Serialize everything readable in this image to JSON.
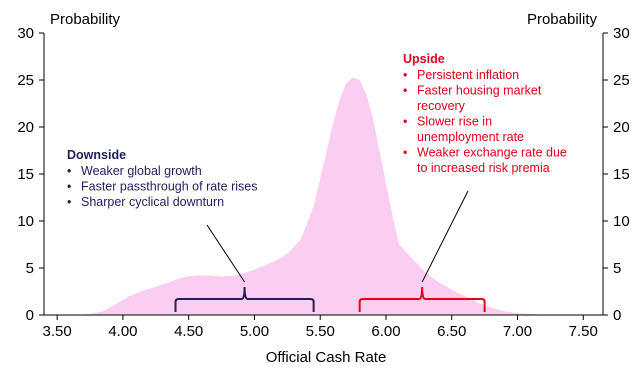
{
  "chart_data": {
    "type": "area",
    "xlabel": "Official Cash Rate",
    "ylabel_left": "Probability",
    "ylabel_right": "Probability",
    "xlim": [
      3.4,
      7.65
    ],
    "ylim": [
      0,
      30
    ],
    "x_ticks": [
      "3.50",
      "4.00",
      "4.50",
      "5.00",
      "5.50",
      "6.00",
      "6.50",
      "7.00",
      "7.50"
    ],
    "y_ticks": [
      "0",
      "5",
      "10",
      "15",
      "20",
      "25",
      "30"
    ],
    "grid": false,
    "colors": {
      "fill": "#fbcdf0",
      "downside": "#1f1f5c",
      "upside": "#e3001b",
      "axis": "#000000"
    },
    "series": [
      {
        "x": [
          3.6,
          3.75,
          3.85,
          3.95,
          4.05,
          4.15,
          4.25,
          4.35,
          4.45,
          4.55,
          4.65,
          4.75,
          4.85,
          4.95,
          5.05,
          5.15,
          5.25,
          5.35,
          5.45,
          5.5,
          5.55,
          5.6,
          5.65,
          5.7,
          5.75,
          5.8,
          5.85,
          5.9,
          5.95,
          6.0,
          6.05,
          6.1,
          6.2,
          6.3,
          6.4,
          6.5,
          6.6,
          6.7,
          6.8,
          6.9,
          7.0,
          7.1,
          7.2,
          7.3
        ],
        "y": [
          0,
          0.1,
          0.4,
          1.2,
          2.0,
          2.6,
          3.0,
          3.5,
          4.0,
          4.2,
          4.2,
          4.1,
          4.2,
          4.6,
          5.1,
          5.7,
          6.5,
          8.0,
          11.5,
          14.5,
          17.5,
          20.5,
          23.0,
          24.7,
          25.3,
          25.0,
          23.5,
          21.0,
          17.5,
          14.0,
          10.5,
          7.5,
          6.0,
          4.5,
          3.5,
          2.7,
          2.0,
          1.3,
          0.8,
          0.4,
          0.2,
          0.1,
          0.03,
          0
        ]
      }
    ],
    "downside": {
      "title": "Downside",
      "items": [
        "Weaker global growth",
        "Faster passthrough of rate rises",
        "Sharper cyclical downturn"
      ],
      "range": [
        4.4,
        5.45
      ]
    },
    "upside": {
      "title": "Upside",
      "items": [
        "Persistent inflation",
        "Faster housing market recovery",
        "Slower rise in unemployment rate",
        "Weaker exchange rate due to increased risk premia"
      ],
      "items_lines": [
        [
          "Persistent inflation"
        ],
        [
          "Faster housing market",
          "recovery"
        ],
        [
          "Slower rise in",
          "unemployment rate"
        ],
        [
          "Weaker exchange rate due",
          "to increased risk premia"
        ]
      ],
      "range": [
        5.8,
        6.75
      ]
    }
  }
}
